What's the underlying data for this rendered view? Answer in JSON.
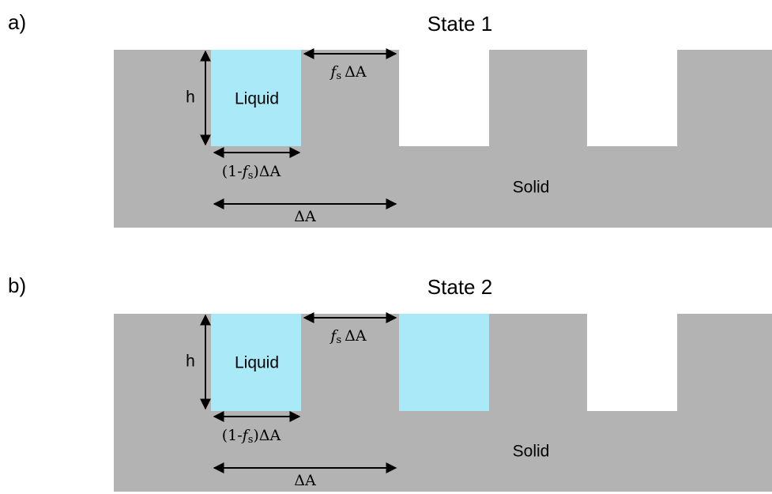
{
  "panels": [
    {
      "label": "a)",
      "title": "State 1",
      "height_label": "h",
      "liquid_label": "Liquid",
      "solid_label": "Solid",
      "fraction_label": {
        "f": "f",
        "sub": "s",
        "rest": "ΔA"
      },
      "complement_label": {
        "open": "(1-",
        "f": "f",
        "sub": "s",
        "close": ")ΔA"
      },
      "area_label": "ΔA"
    },
    {
      "label": "b)",
      "title": "State 2",
      "height_label": "h",
      "liquid_label": "Liquid",
      "solid_label": "Solid",
      "fraction_label": {
        "f": "f",
        "sub": "s",
        "rest": "ΔA"
      },
      "complement_label": {
        "open": "(1-",
        "f": "f",
        "sub": "s",
        "close": ")ΔA"
      },
      "area_label": "ΔA"
    }
  ]
}
